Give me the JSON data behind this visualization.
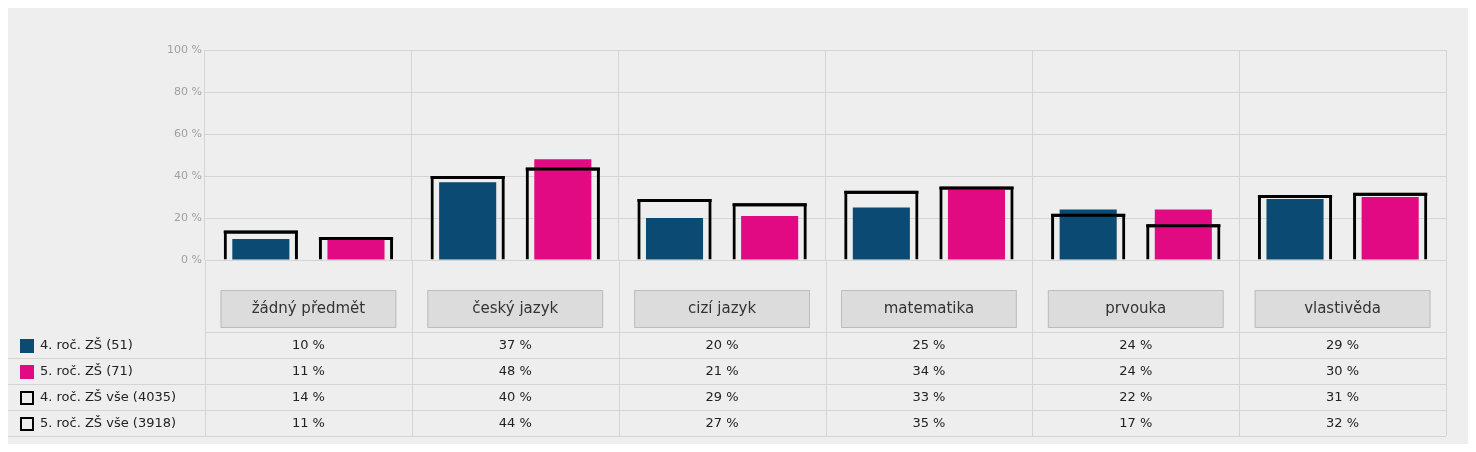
{
  "chart_data": {
    "type": "bar",
    "categories": [
      "žádný předmět",
      "český jazyk",
      "cizí jazyk",
      "matematika",
      "prvouka",
      "vlastivěda"
    ],
    "series": [
      {
        "name": "4. roč. ZŠ (51)",
        "color": "#0b4a72",
        "values": [
          10,
          37,
          20,
          25,
          24,
          29
        ],
        "value_labels": [
          "10 %",
          "37 %",
          "20 %",
          "25 %",
          "24 %",
          "29 %"
        ]
      },
      {
        "name": "5. roč. ZŠ (71)",
        "color": "#e20a82",
        "values": [
          11,
          48,
          21,
          34,
          24,
          30
        ],
        "value_labels": [
          "11 %",
          "48 %",
          "21 %",
          "34 %",
          "24 %",
          "30 %"
        ]
      },
      {
        "name": "4. roč. ZŠ vše (4035)",
        "color": "#000000",
        "values": [
          14,
          40,
          29,
          33,
          22,
          31
        ],
        "value_labels": [
          "14 %",
          "40 %",
          "29 %",
          "33 %",
          "22 %",
          "31 %"
        ]
      },
      {
        "name": "5. roč. ZŠ vše (3918)",
        "color": "#000000",
        "values": [
          11,
          44,
          27,
          35,
          17,
          32
        ],
        "value_labels": [
          "11 %",
          "44 %",
          "27 %",
          "35 %",
          "17 %",
          "32 %"
        ]
      }
    ],
    "ylim": [
      0,
      100
    ],
    "yticks": [
      {
        "value": 0,
        "label": "0 %"
      },
      {
        "value": 20,
        "label": "20 %"
      },
      {
        "value": 40,
        "label": "40 %"
      },
      {
        "value": 60,
        "label": "60 %"
      },
      {
        "value": 80,
        "label": "80 %"
      },
      {
        "value": 100,
        "label": "100 %"
      }
    ],
    "grid": true,
    "legend": "bottom left"
  }
}
